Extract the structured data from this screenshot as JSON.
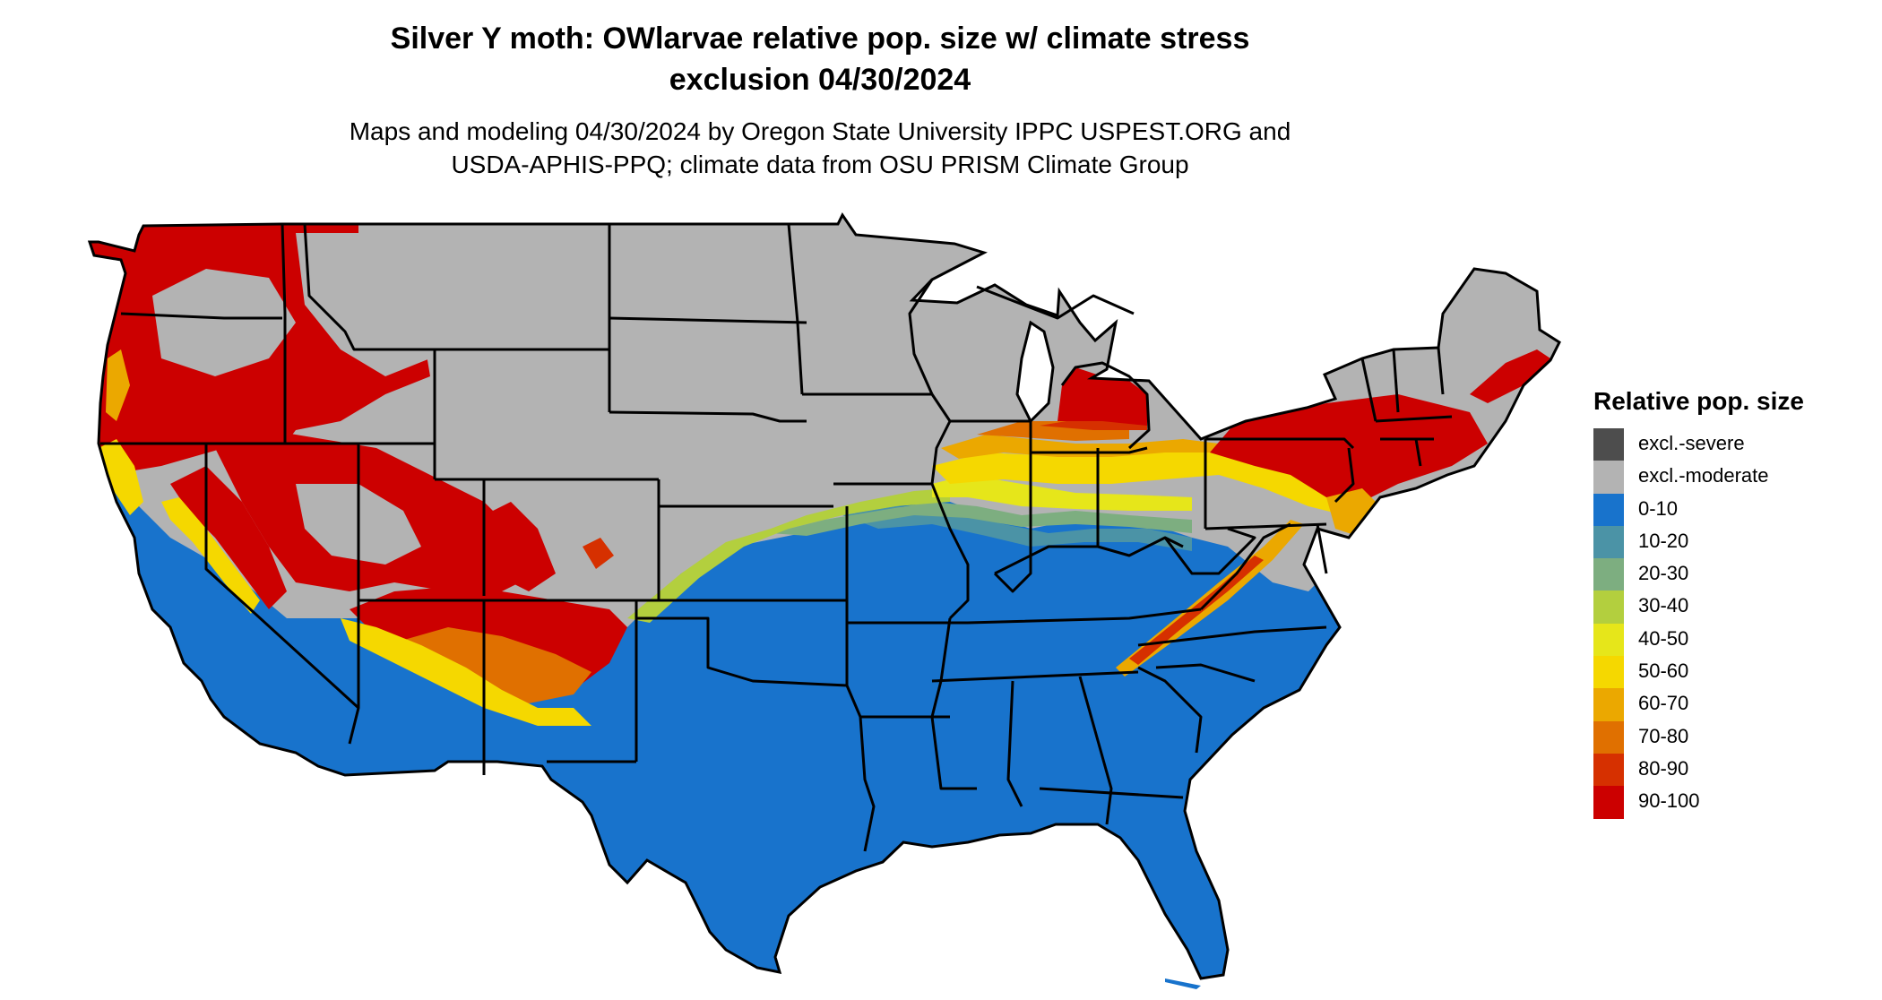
{
  "title_line1": "Silver Y moth: OWlarvae relative pop. size w/ climate stress",
  "title_line2": "exclusion 04/30/2024",
  "subtitle_line1": "Maps and modeling 04/30/2024 by Oregon State University IPPC USPEST.ORG and",
  "subtitle_line2": "USDA-APHIS-PPQ; climate data from OSU PRISM Climate Group",
  "legend": {
    "title": "Relative pop. size",
    "items": [
      {
        "label": "excl.-severe",
        "color": "#4d4d4d"
      },
      {
        "label": "excl.-moderate",
        "color": "#b3b3b3"
      },
      {
        "label": "0-10",
        "color": "#1873cc"
      },
      {
        "label": "10-20",
        "color": "#4b93a6"
      },
      {
        "label": "20-30",
        "color": "#7dae80"
      },
      {
        "label": "30-40",
        "color": "#b3cf3e"
      },
      {
        "label": "40-50",
        "color": "#e6e61a"
      },
      {
        "label": "50-60",
        "color": "#f5d800"
      },
      {
        "label": "60-70",
        "color": "#eba800"
      },
      {
        "label": "70-80",
        "color": "#e07000"
      },
      {
        "label": "80-90",
        "color": "#d63000"
      },
      {
        "label": "90-100",
        "color": "#cc0000"
      }
    ]
  }
}
